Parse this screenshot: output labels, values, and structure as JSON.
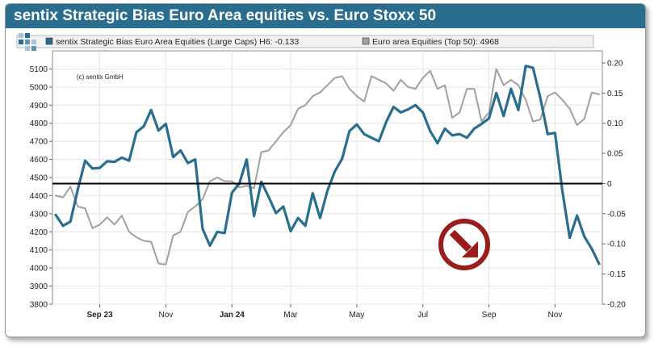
{
  "title": "sentix Strategic Bias Euro Area equities vs. Euro Stoxx 50",
  "chart_data": {
    "type": "line",
    "title": "sentix Strategic Bias Euro Area equities vs. Euro Stoxx 50",
    "annotation": "(c) sentix GmbH",
    "x_ticks": [
      {
        "label": "Sep 23",
        "bold": true,
        "index": 6
      },
      {
        "label": "Nov",
        "bold": false,
        "index": 15
      },
      {
        "label": "Jan 24",
        "bold": true,
        "index": 24
      },
      {
        "label": "Mar",
        "bold": false,
        "index": 32
      },
      {
        "label": "May",
        "bold": false,
        "index": 41
      },
      {
        "label": "Jul",
        "bold": false,
        "index": 50
      },
      {
        "label": "Sep",
        "bold": false,
        "index": 59
      },
      {
        "label": "Nov",
        "bold": false,
        "index": 68
      }
    ],
    "y_left": {
      "ticks": [
        3800,
        3900,
        4000,
        4100,
        4200,
        4300,
        4400,
        4500,
        4600,
        4700,
        4800,
        4900,
        5000,
        5100
      ],
      "range": [
        3800,
        5200
      ]
    },
    "y_right": {
      "ticks": [
        -0.2,
        -0.15,
        -0.1,
        -0.05,
        0,
        0.05,
        0.1,
        0.15,
        0.2
      ],
      "tick_labels": [
        "-0.20",
        "-0.15",
        "-0.10",
        "-0.05",
        "0",
        "0.05",
        "0.10",
        "0.15",
        "0.20"
      ],
      "range": [
        -0.2,
        0.22
      ]
    },
    "zero_line": 0,
    "series": [
      {
        "name": "sentix Strategic Bias Euro Area Equities (Large Caps) H6: -0.133",
        "axis": "right",
        "color": "#2a6e8f",
        "values": [
          -0.052,
          -0.07,
          -0.063,
          -0.01,
          0.038,
          0.025,
          0.026,
          0.037,
          0.036,
          0.043,
          0.038,
          0.085,
          0.095,
          0.122,
          0.088,
          0.099,
          0.044,
          0.055,
          0.034,
          0.04,
          -0.075,
          -0.103,
          -0.08,
          -0.082,
          -0.015,
          0.0,
          0.04,
          -0.054,
          0.003,
          -0.022,
          -0.049,
          -0.038,
          -0.079,
          -0.057,
          -0.07,
          -0.016,
          -0.057,
          -0.012,
          0.02,
          0.041,
          0.087,
          0.098,
          0.082,
          0.076,
          0.07,
          0.102,
          0.127,
          0.118,
          0.123,
          0.13,
          0.118,
          0.087,
          0.067,
          0.091,
          0.08,
          0.082,
          0.076,
          0.091,
          0.099,
          0.108,
          0.15,
          0.112,
          0.157,
          0.122,
          0.195,
          0.192,
          0.142,
          0.082,
          0.084,
          -0.012,
          -0.09,
          -0.053,
          -0.088,
          -0.108,
          -0.133
        ]
      },
      {
        "name": "Euro area Equities (Top 50): 4968",
        "axis": "left",
        "color": "#a0a0a0",
        "values": [
          4400,
          4390,
          4450,
          4340,
          4330,
          4220,
          4240,
          4280,
          4240,
          4290,
          4200,
          4170,
          4150,
          4145,
          4025,
          4020,
          4180,
          4200,
          4310,
          4340,
          4380,
          4480,
          4500,
          4480,
          4480,
          4445,
          4455,
          4440,
          4640,
          4650,
          4700,
          4750,
          4790,
          4880,
          4900,
          4950,
          4970,
          5010,
          5050,
          5060,
          4990,
          4950,
          4920,
          5060,
          5040,
          5020,
          4980,
          5040,
          5000,
          4990,
          5050,
          5090,
          4990,
          5010,
          4830,
          4860,
          4990,
          4990,
          4810,
          4860,
          5100,
          5010,
          5040,
          5010,
          4930,
          4810,
          4820,
          4950,
          4970,
          4930,
          4880,
          4790,
          4825,
          4970,
          4960
        ]
      }
    ],
    "grid": true,
    "legend_placement": "top"
  }
}
